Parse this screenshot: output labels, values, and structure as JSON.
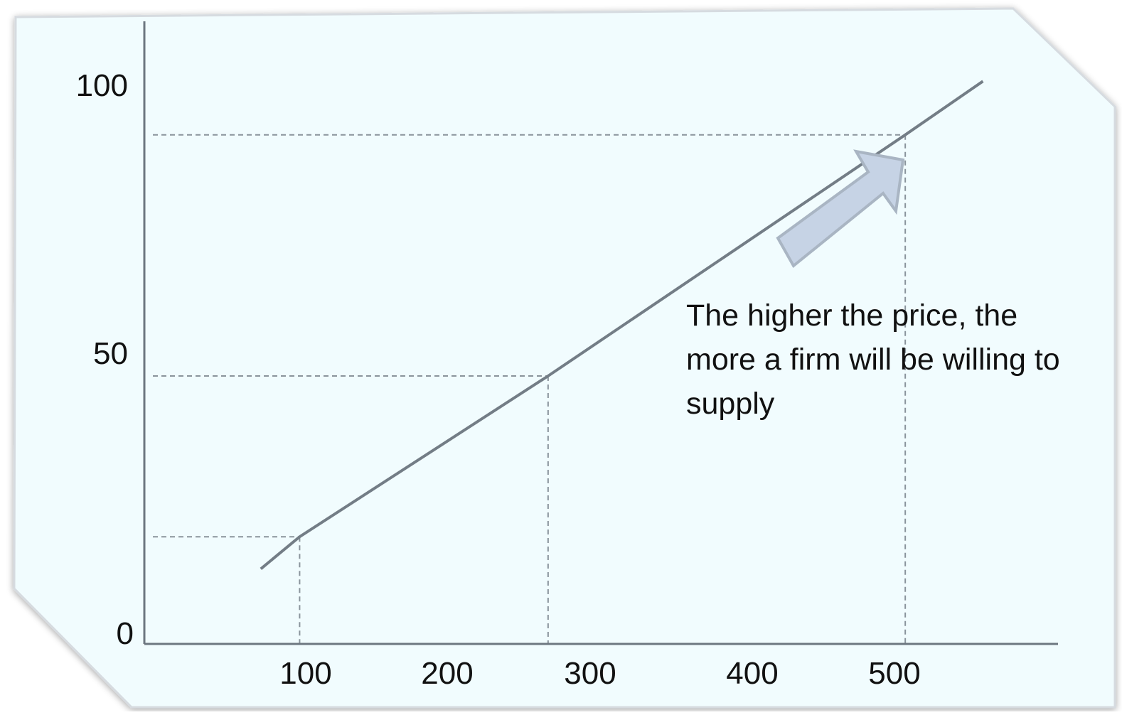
{
  "chart_data": {
    "type": "line",
    "title": "",
    "xlabel": "",
    "ylabel": "",
    "x_ticks": [
      "100",
      "200",
      "300",
      "400",
      "500"
    ],
    "y_ticks": [
      "0",
      "50",
      "100"
    ],
    "grid": false,
    "series": [
      {
        "x": [
          75,
          100,
          260,
          490,
          540
        ],
        "y": [
          14,
          20,
          50,
          95,
          105
        ]
      }
    ],
    "reference_points": [
      {
        "x": 100,
        "y": 20
      },
      {
        "x": 260,
        "y": 50
      },
      {
        "x": 490,
        "y": 95
      }
    ],
    "annotation": {
      "lines": [
        "The higher the price, the",
        "more a firm will be willing to",
        "supply"
      ]
    },
    "colors": {
      "panel_fill": "#f1fcfe",
      "panel_border": "#d6dbe0",
      "axis": "#6d7780",
      "supply_line": "#737d86",
      "guide_line": "#8a949c",
      "arrow_fill": "#c6d3e5",
      "arrow_stroke": "#a9b5c3",
      "text": "#111111"
    }
  }
}
